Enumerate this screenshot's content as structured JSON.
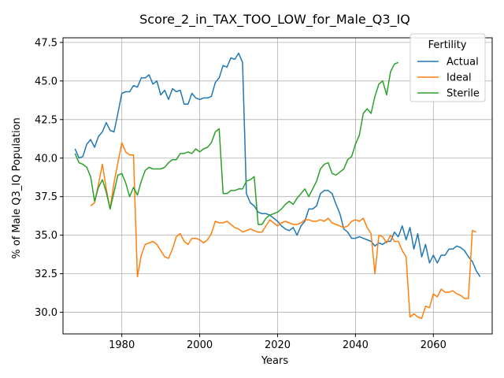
{
  "chart_data": {
    "type": "line",
    "title": "Score_2_in_TAX_TOO_LOW_for_Male_Q3_IQ",
    "xlabel": "Years",
    "ylabel": "% of Male Q3_IQ Population",
    "xlim": [
      1964.9,
      2075.1
    ],
    "ylim": [
      28.6,
      47.8
    ],
    "x_ticks": [
      1980,
      2000,
      2020,
      2040,
      2060
    ],
    "y_ticks": [
      30.0,
      32.5,
      35.0,
      37.5,
      40.0,
      42.5,
      45.0,
      47.5
    ],
    "x_tick_labels": [
      "1980",
      "2000",
      "2020",
      "2040",
      "2060"
    ],
    "y_tick_labels": [
      "30.0",
      "32.5",
      "35.0",
      "37.5",
      "40.0",
      "42.5",
      "45.0",
      "47.5"
    ],
    "grid": true,
    "legend": {
      "title": "Fertility",
      "placement": "top-right"
    },
    "series": [
      {
        "name": "Actual",
        "color": "#1f77b4",
        "x_start": 1968,
        "values": [
          40.6,
          40.0,
          40.1,
          40.9,
          41.2,
          40.7,
          41.4,
          41.7,
          42.3,
          41.8,
          41.7,
          42.9,
          44.2,
          44.3,
          44.3,
          44.7,
          44.6,
          45.2,
          45.2,
          45.4,
          44.8,
          45.0,
          44.1,
          44.4,
          43.8,
          44.5,
          44.3,
          44.4,
          43.5,
          43.5,
          44.2,
          43.9,
          43.8,
          43.9,
          43.9,
          44.0,
          44.9,
          45.2,
          46.0,
          45.9,
          46.5,
          46.4,
          46.8,
          46.2,
          37.7,
          37.1,
          36.9,
          36.5,
          36.4,
          36.4,
          36.3,
          36.1,
          35.9,
          35.6,
          35.4,
          35.3,
          35.5,
          35.0,
          35.6,
          35.9,
          36.7,
          36.7,
          36.9,
          37.7,
          37.9,
          37.9,
          37.7,
          37.0,
          36.4,
          35.4,
          35.2,
          34.8,
          34.8,
          34.9,
          34.8,
          34.7,
          34.6,
          34.3,
          34.5,
          34.4,
          34.6,
          34.6,
          35.2,
          34.9,
          35.6,
          34.7,
          35.5,
          34.1,
          35.1,
          33.6,
          34.4,
          33.2,
          33.7,
          33.2,
          33.7,
          33.7,
          34.1,
          34.1,
          34.3,
          34.2,
          34.0,
          33.6,
          33.3,
          32.7,
          32.3
        ]
      },
      {
        "name": "Ideal",
        "color": "#ff7f0e",
        "x_start": 1972,
        "values": [
          36.9,
          37.1,
          38.3,
          39.6,
          38.0,
          36.7,
          38.4,
          39.7,
          41.0,
          40.4,
          40.2,
          40.2,
          32.3,
          33.7,
          34.4,
          34.5,
          34.6,
          34.4,
          34.0,
          33.6,
          33.5,
          34.1,
          34.9,
          35.1,
          34.6,
          34.4,
          34.8,
          34.8,
          34.7,
          34.5,
          34.7,
          35.1,
          35.9,
          35.8,
          35.8,
          35.9,
          35.7,
          35.5,
          35.4,
          35.2,
          35.3,
          35.4,
          35.3,
          35.2,
          35.2,
          35.6,
          36.0,
          35.8,
          35.6,
          35.8,
          35.9,
          35.8,
          35.7,
          35.7,
          35.8,
          36.0,
          36.0,
          35.9,
          35.9,
          36.0,
          35.9,
          36.1,
          35.8,
          35.7,
          35.6,
          35.5,
          35.6,
          35.9,
          36.0,
          35.9,
          36.1,
          35.5,
          35.1,
          32.5,
          35.0,
          34.9,
          34.5,
          35.0,
          34.6,
          34.6,
          34.0,
          33.6,
          29.7,
          29.9,
          29.7,
          29.6,
          30.4,
          30.3,
          31.2,
          31.0,
          31.5,
          31.3,
          31.3,
          31.4,
          31.2,
          31.1,
          30.9,
          30.9,
          35.3,
          35.2
        ]
      },
      {
        "name": "Sterile",
        "color": "#2ca02c",
        "x_start": 1968,
        "values": [
          40.3,
          39.7,
          39.6,
          39.4,
          38.8,
          37.2,
          38.1,
          38.6,
          37.8,
          36.7,
          37.8,
          38.9,
          39.0,
          38.4,
          37.5,
          38.1,
          37.6,
          38.5,
          39.2,
          39.4,
          39.3,
          39.3,
          39.3,
          39.4,
          39.7,
          39.9,
          39.9,
          40.3,
          40.3,
          40.4,
          40.3,
          40.6,
          40.4,
          40.6,
          40.7,
          41.0,
          41.7,
          41.9,
          37.7,
          37.7,
          37.9,
          37.9,
          38.0,
          38.0,
          38.5,
          38.6,
          38.8,
          35.7,
          35.7,
          36.1,
          36.3,
          36.4,
          36.5,
          36.7,
          37.0,
          37.2,
          37.0,
          37.4,
          37.7,
          38.0,
          37.5,
          38.0,
          38.5,
          39.3,
          39.6,
          39.7,
          39.0,
          38.9,
          39.1,
          39.3,
          39.9,
          40.1,
          40.9,
          41.5,
          42.9,
          43.2,
          42.9,
          44.0,
          44.8,
          45.0,
          44.1,
          45.6,
          46.1,
          46.2
        ]
      }
    ]
  }
}
